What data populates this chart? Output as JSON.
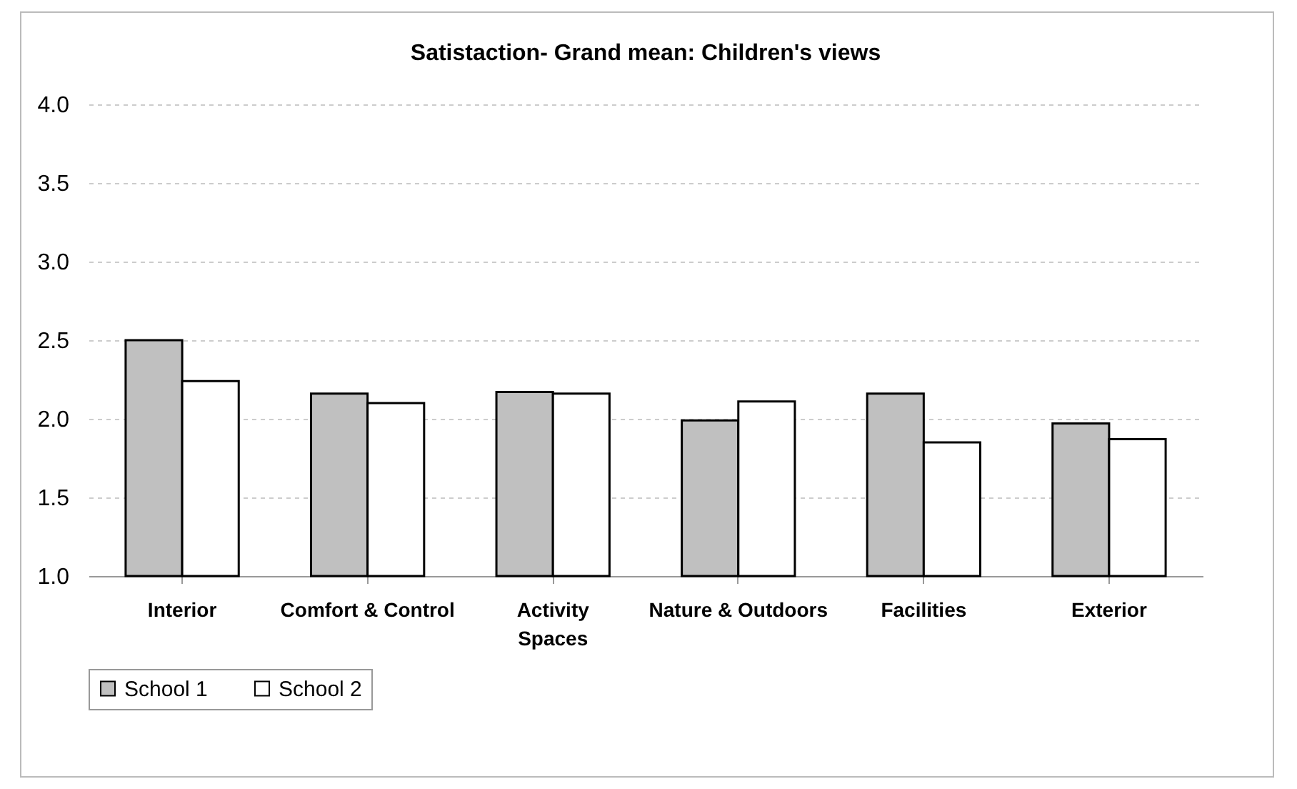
{
  "chart_data": {
    "type": "bar",
    "title": "Satistaction- Grand mean: Children's views",
    "categories": [
      "Interior",
      "Comfort & Control",
      "Activity Spaces",
      "Nature & Outdoors",
      "Facilities",
      "Exterior"
    ],
    "series": [
      {
        "name": "School 1",
        "color": "#c0c0c0",
        "values": [
          2.5,
          2.16,
          2.17,
          1.99,
          2.16,
          1.97
        ]
      },
      {
        "name": "School 2",
        "color": "#ffffff",
        "values": [
          2.24,
          2.1,
          2.16,
          2.11,
          1.85,
          1.87
        ]
      }
    ],
    "ylim": [
      1,
      4
    ],
    "yticks": [
      {
        "value": 1,
        "label": "1.0"
      },
      {
        "value": 1.5,
        "label": "1.5"
      },
      {
        "value": 2,
        "label": "2.0"
      },
      {
        "value": 2.5,
        "label": "2.5"
      },
      {
        "value": 3,
        "label": "3.0"
      },
      {
        "value": 3.5,
        "label": "3.5"
      },
      {
        "value": 4,
        "label": "4.0"
      }
    ],
    "grid": "y",
    "legend": "bottom"
  }
}
